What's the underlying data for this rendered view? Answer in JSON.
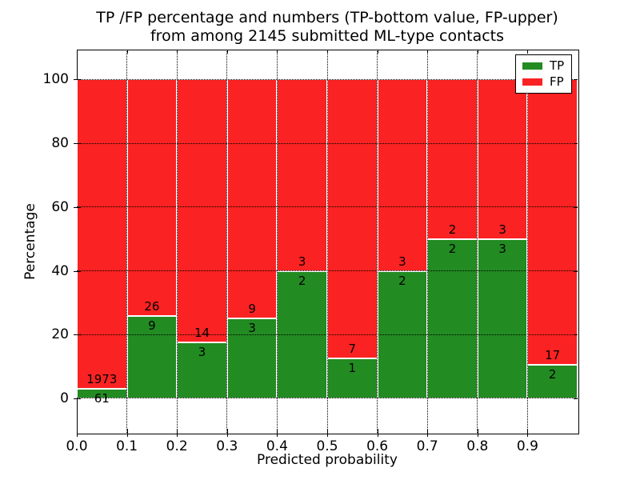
{
  "title": {
    "line1": "TP /FP percentage and numbers (TP-bottom value, FP-upper)",
    "line2": "from among 2145 submitted ML-type contacts"
  },
  "chart_data": {
    "type": "bar",
    "stacked": true,
    "normalized": "each bin scaled to 100%",
    "total_contacts": 2145,
    "categories": [
      "0.0-0.1",
      "0.1-0.2",
      "0.2-0.3",
      "0.3-0.4",
      "0.4-0.5",
      "0.5-0.6",
      "0.6-0.7",
      "0.7-0.8",
      "0.8-0.9",
      "0.9-1.0"
    ],
    "series": [
      {
        "name": "TP",
        "color": "#228b22",
        "counts": [
          61,
          9,
          3,
          3,
          2,
          1,
          2,
          2,
          3,
          2
        ]
      },
      {
        "name": "FP",
        "color": "#fa2222",
        "counts": [
          1973,
          26,
          14,
          9,
          3,
          7,
          3,
          2,
          3,
          17
        ]
      }
    ],
    "tp_percent_shown": [
      3.0,
      25.7,
      17.6,
      25.0,
      40.0,
      12.5,
      40.0,
      50.0,
      50.0,
      10.5
    ],
    "title": "TP /FP percentage and numbers (TP-bottom value, FP-upper)\nfrom among 2145 submitted ML-type contacts",
    "xlabel": "Predicted probability",
    "ylabel": "Percentage",
    "xticks": [
      "0.0",
      "0.1",
      "0.2",
      "0.3",
      "0.4",
      "0.5",
      "0.6",
      "0.7",
      "0.8",
      "0.9"
    ],
    "yticks": [
      0,
      20,
      40,
      60,
      80,
      100
    ],
    "xlim": [
      0.0,
      1.0
    ],
    "ylim": [
      -10.8,
      109.4
    ],
    "grid": true,
    "grid_style": "dotted",
    "legend": {
      "position": "upper right",
      "entries": [
        {
          "label": "TP",
          "color": "#228b22"
        },
        {
          "label": "FP",
          "color": "#fa2222"
        }
      ]
    }
  }
}
